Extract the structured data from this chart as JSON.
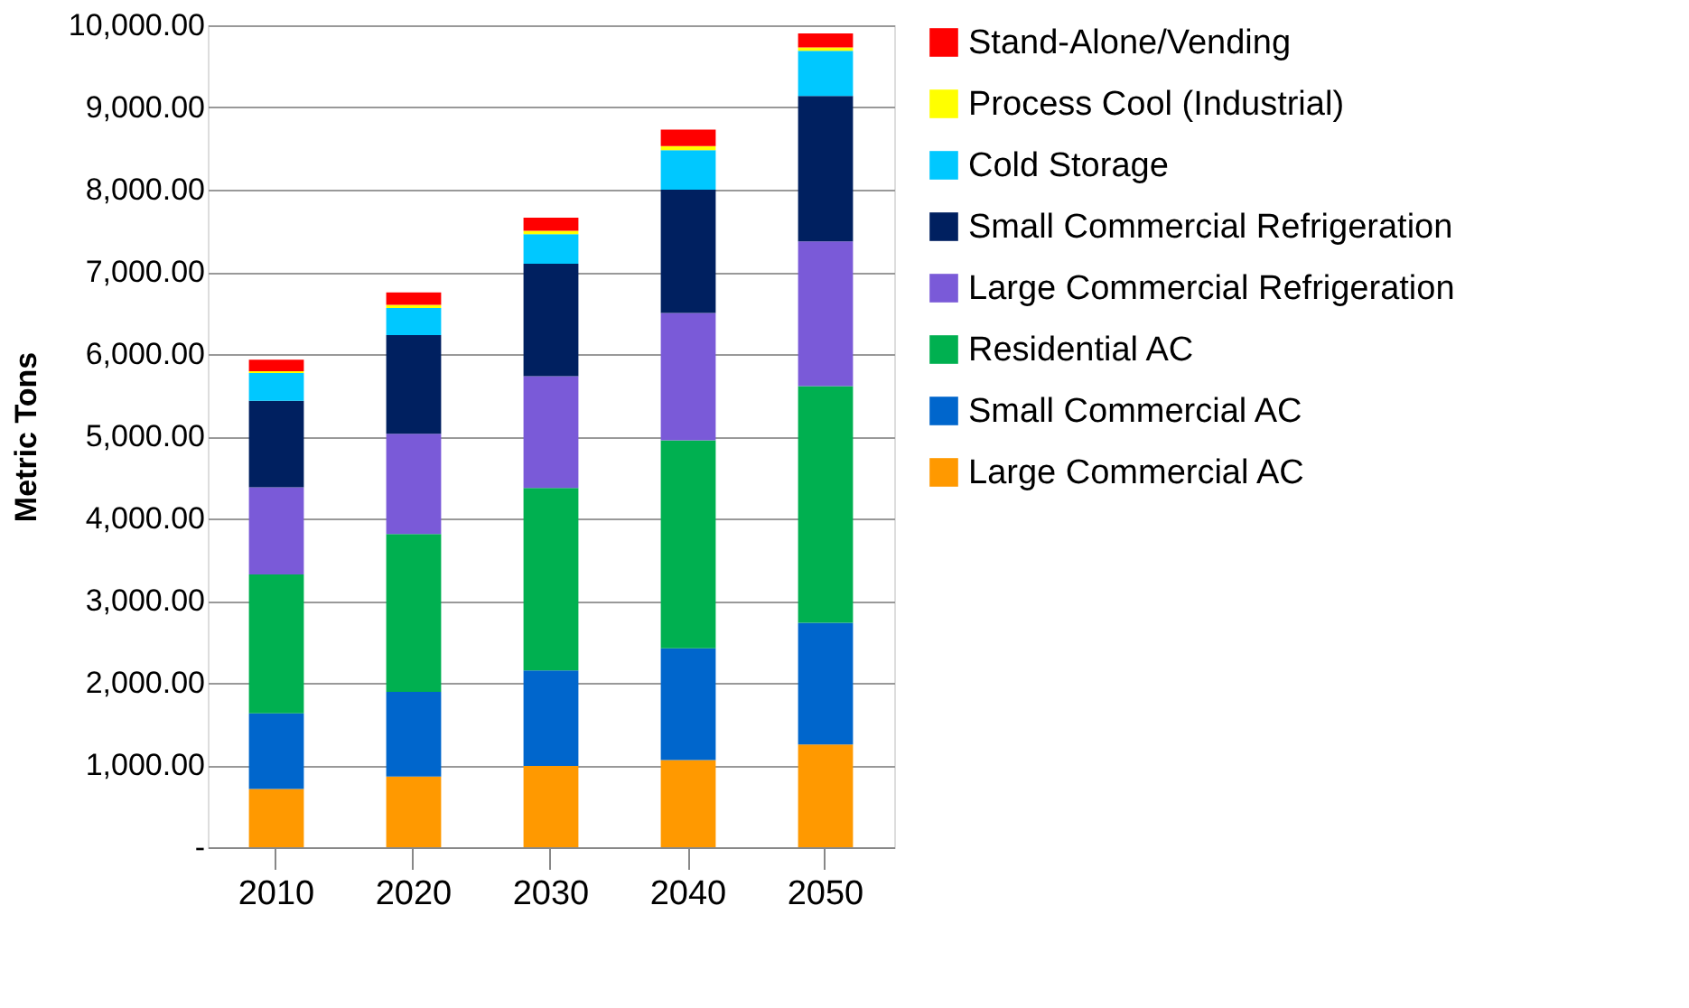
{
  "chart_data": {
    "type": "bar",
    "stacked": true,
    "ylabel": "Metric Tons",
    "categories": [
      "2010",
      "2020",
      "2030",
      "2040",
      "2050"
    ],
    "ylim": [
      0,
      10000
    ],
    "yticks": [
      {
        "value": 0,
        "label": "-"
      },
      {
        "value": 1000,
        "label": "1,000.00"
      },
      {
        "value": 2000,
        "label": "2,000.00"
      },
      {
        "value": 3000,
        "label": "3,000.00"
      },
      {
        "value": 4000,
        "label": "4,000.00"
      },
      {
        "value": 5000,
        "label": "5,000.00"
      },
      {
        "value": 6000,
        "label": "6,000.00"
      },
      {
        "value": 7000,
        "label": "7,000.00"
      },
      {
        "value": 8000,
        "label": "8,000.00"
      },
      {
        "value": 9000,
        "label": "9,000.00"
      },
      {
        "value": 10000,
        "label": "10,000.00"
      }
    ],
    "grid": "y",
    "legend": "right",
    "series": [
      {
        "name": "Large Commercial AC",
        "color": "#ff9900",
        "values": [
          710,
          860,
          990,
          1060,
          1250
        ]
      },
      {
        "name": "Small Commercial AC",
        "color": "#0066cc",
        "values": [
          920,
          1030,
          1160,
          1360,
          1480
        ]
      },
      {
        "name": "Residential AC",
        "color": "#00b050",
        "values": [
          1690,
          1920,
          2220,
          2530,
          2880
        ]
      },
      {
        "name": "Large Commercial Refrigeration",
        "color": "#7a5ad8",
        "values": [
          1060,
          1220,
          1360,
          1550,
          1760
        ]
      },
      {
        "name": "Small Commercial Refrigeration",
        "color": "#002060",
        "values": [
          1050,
          1200,
          1370,
          1500,
          1770
        ]
      },
      {
        "name": "Cold Storage",
        "color": "#00c8ff",
        "values": [
          340,
          330,
          360,
          480,
          550
        ]
      },
      {
        "name": "Process Cool (Industrial)",
        "color": "#ffff00",
        "values": [
          20,
          40,
          40,
          50,
          40
        ]
      },
      {
        "name": "Stand-Alone/Vending",
        "color": "#ff0000",
        "values": [
          140,
          150,
          160,
          200,
          170
        ]
      }
    ]
  }
}
